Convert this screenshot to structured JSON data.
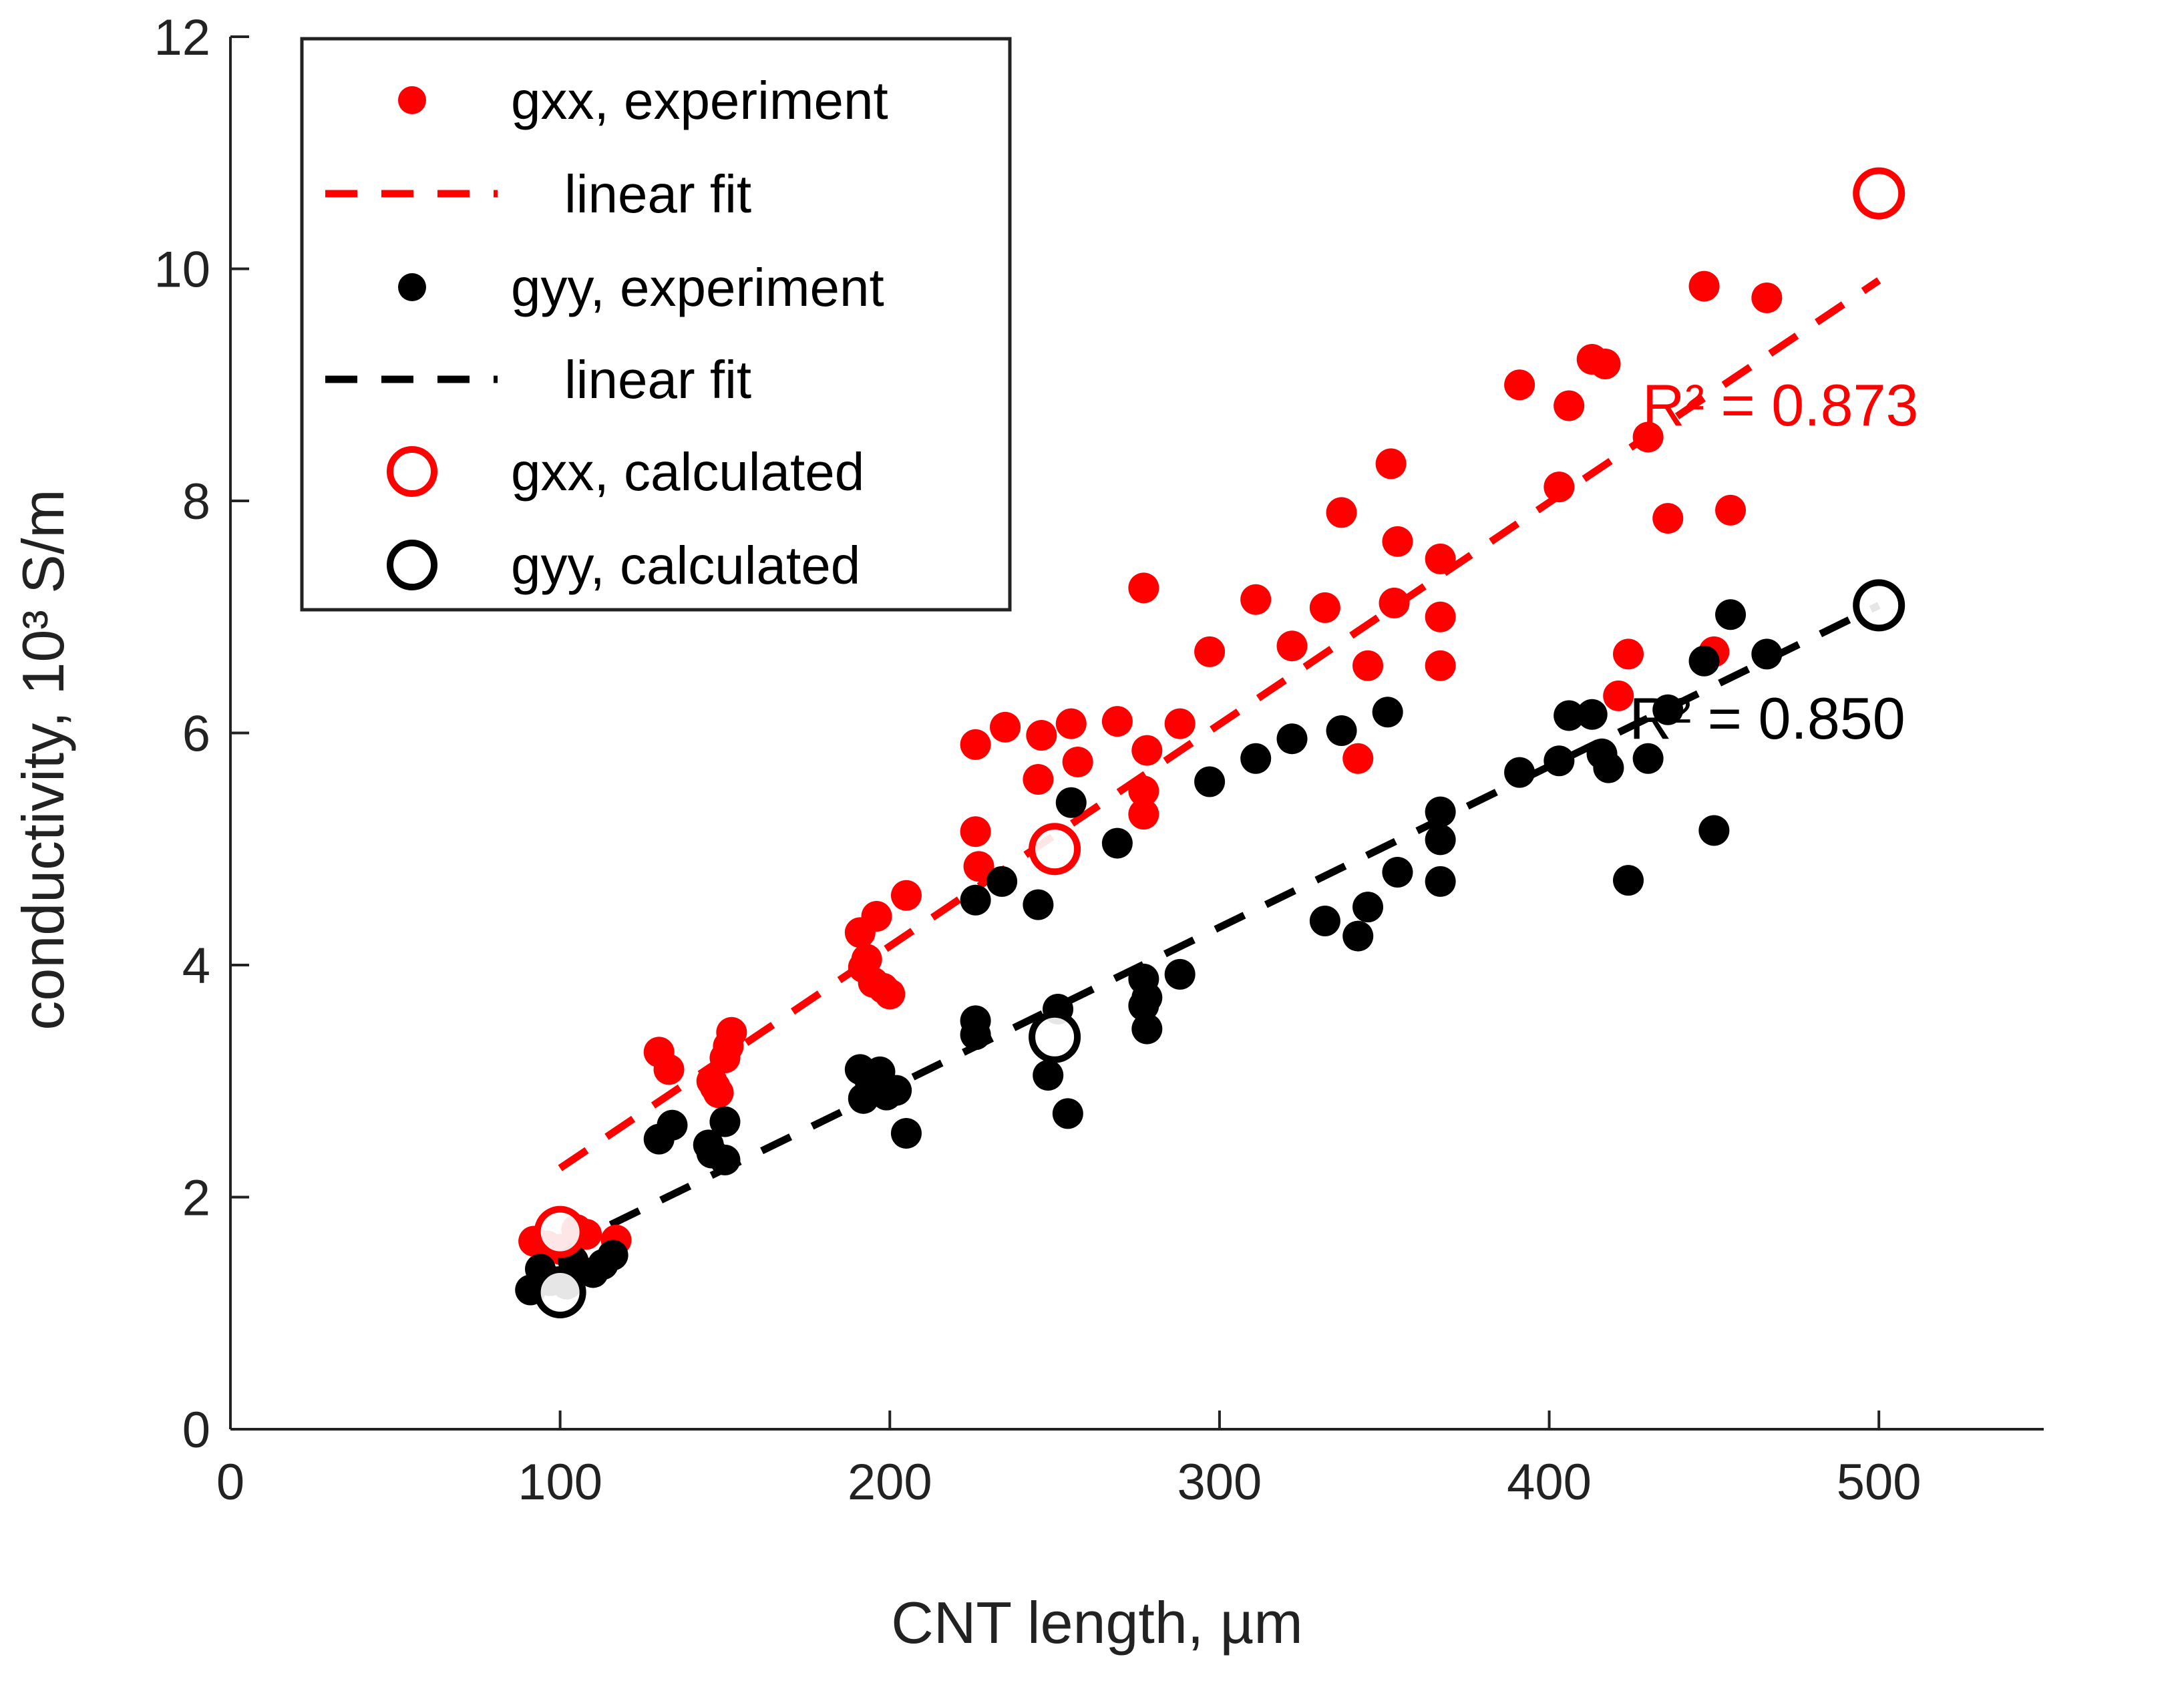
{
  "chart_data": {
    "type": "scatter",
    "xlabel": "CNT length, µm",
    "ylabel": "conductivity, 10³ S/m",
    "xlim": [
      0,
      550
    ],
    "ylim": [
      0,
      12
    ],
    "xticks": [
      "0",
      "100",
      "200",
      "300",
      "400",
      "500"
    ],
    "yticks": [
      "0",
      "2",
      "4",
      "6",
      "8",
      "10",
      "12"
    ],
    "grid": false,
    "legend_position": "top-left",
    "series": [
      {
        "name": "gxx, experiment",
        "kind": "scatter-filled",
        "color": "#ff0000",
        "points": [
          [
            92,
            1.62
          ],
          [
            96,
            1.58
          ],
          [
            100,
            1.55
          ],
          [
            103,
            1.5
          ],
          [
            105,
            1.72
          ],
          [
            108,
            1.68
          ],
          [
            117,
            1.63
          ],
          [
            130,
            3.25
          ],
          [
            133,
            3.1
          ],
          [
            146,
            3.0
          ],
          [
            147,
            2.95
          ],
          [
            148,
            2.9
          ],
          [
            150,
            3.2
          ],
          [
            151,
            3.3
          ],
          [
            152,
            3.42
          ],
          [
            191,
            4.28
          ],
          [
            192,
            3.98
          ],
          [
            193,
            4.05
          ],
          [
            195,
            3.85
          ],
          [
            196,
            4.42
          ],
          [
            198,
            3.8
          ],
          [
            200,
            3.75
          ],
          [
            205,
            4.6
          ],
          [
            226,
            5.9
          ],
          [
            226,
            5.15
          ],
          [
            227,
            4.85
          ],
          [
            235,
            6.05
          ],
          [
            245,
            5.6
          ],
          [
            246,
            5.98
          ],
          [
            255,
            6.08
          ],
          [
            257,
            5.75
          ],
          [
            269,
            6.1
          ],
          [
            277,
            7.25
          ],
          [
            277,
            5.5
          ],
          [
            277,
            5.3
          ],
          [
            278,
            5.85
          ],
          [
            288,
            6.08
          ],
          [
            297,
            6.7
          ],
          [
            311,
            7.15
          ],
          [
            322,
            6.75
          ],
          [
            332,
            7.08
          ],
          [
            337,
            7.9
          ],
          [
            342,
            5.78
          ],
          [
            345,
            6.58
          ],
          [
            352,
            8.32
          ],
          [
            353,
            7.12
          ],
          [
            354,
            7.65
          ],
          [
            367,
            7.5
          ],
          [
            367,
            7.0
          ],
          [
            367,
            6.58
          ],
          [
            391,
            9.0
          ],
          [
            403,
            8.12
          ],
          [
            406,
            8.82
          ],
          [
            413,
            9.22
          ],
          [
            417,
            9.18
          ],
          [
            430,
            8.55
          ],
          [
            436,
            7.85
          ],
          [
            424,
            6.68
          ],
          [
            421,
            6.32
          ],
          [
            447,
            9.85
          ],
          [
            450,
            6.7
          ],
          [
            455,
            7.92
          ],
          [
            466,
            9.75
          ]
        ]
      },
      {
        "name": "linear fit",
        "kind": "line-dashed",
        "color": "#ff0000",
        "points": [
          [
            100,
            2.25
          ],
          [
            500,
            9.9
          ]
        ]
      },
      {
        "name": "gyy, experiment",
        "kind": "scatter-filled",
        "color": "#000000",
        "points": [
          [
            91,
            1.2
          ],
          [
            94,
            1.38
          ],
          [
            97,
            1.28
          ],
          [
            102,
            1.25
          ],
          [
            104,
            1.45
          ],
          [
            110,
            1.35
          ],
          [
            113,
            1.42
          ],
          [
            116,
            1.5
          ],
          [
            130,
            2.5
          ],
          [
            134,
            2.62
          ],
          [
            145,
            2.45
          ],
          [
            146,
            2.38
          ],
          [
            150,
            2.65
          ],
          [
            150,
            2.32
          ],
          [
            191,
            3.1
          ],
          [
            192,
            2.85
          ],
          [
            194,
            3.0
          ],
          [
            197,
            3.08
          ],
          [
            199,
            2.88
          ],
          [
            202,
            2.92
          ],
          [
            205,
            2.55
          ],
          [
            226,
            3.52
          ],
          [
            226,
            3.4
          ],
          [
            226,
            4.56
          ],
          [
            234,
            4.72
          ],
          [
            245,
            4.52
          ],
          [
            248,
            3.05
          ],
          [
            251,
            3.62
          ],
          [
            254,
            2.72
          ],
          [
            255,
            5.4
          ],
          [
            269,
            5.05
          ],
          [
            277,
            3.88
          ],
          [
            277,
            3.65
          ],
          [
            278,
            3.72
          ],
          [
            278,
            3.45
          ],
          [
            288,
            3.92
          ],
          [
            297,
            5.58
          ],
          [
            311,
            5.78
          ],
          [
            322,
            5.95
          ],
          [
            332,
            4.38
          ],
          [
            337,
            6.02
          ],
          [
            342,
            4.25
          ],
          [
            345,
            4.5
          ],
          [
            351,
            6.18
          ],
          [
            354,
            4.8
          ],
          [
            367,
            5.32
          ],
          [
            367,
            5.08
          ],
          [
            367,
            4.72
          ],
          [
            391,
            5.66
          ],
          [
            403,
            5.76
          ],
          [
            406,
            6.15
          ],
          [
            413,
            6.16
          ],
          [
            416,
            5.82
          ],
          [
            418,
            5.7
          ],
          [
            424,
            4.73
          ],
          [
            430,
            5.78
          ],
          [
            436,
            6.2
          ],
          [
            447,
            6.62
          ],
          [
            450,
            5.16
          ],
          [
            455,
            7.02
          ],
          [
            466,
            6.68
          ]
        ]
      },
      {
        "name": "linear fit",
        "kind": "line-dashed",
        "color": "#000000",
        "points": [
          [
            100,
            1.55
          ],
          [
            500,
            7.1
          ]
        ]
      },
      {
        "name": "gxx, calculated",
        "kind": "scatter-open",
        "color": "#ff0000",
        "points": [
          [
            100,
            1.7
          ],
          [
            250,
            5.0
          ],
          [
            500,
            10.65
          ]
        ]
      },
      {
        "name": "gyy, calculated",
        "kind": "scatter-open",
        "color": "#000000",
        "points": [
          [
            100,
            1.18
          ],
          [
            250,
            3.38
          ],
          [
            500,
            7.1
          ]
        ]
      }
    ],
    "annotations": [
      {
        "text": "R² = 0.873",
        "color": "#ff0000",
        "x": 512,
        "y": 8.65,
        "anchor": "end"
      },
      {
        "text": "R² = 0.850",
        "color": "#000000",
        "x": 508,
        "y": 5.95,
        "anchor": "end"
      }
    ]
  }
}
